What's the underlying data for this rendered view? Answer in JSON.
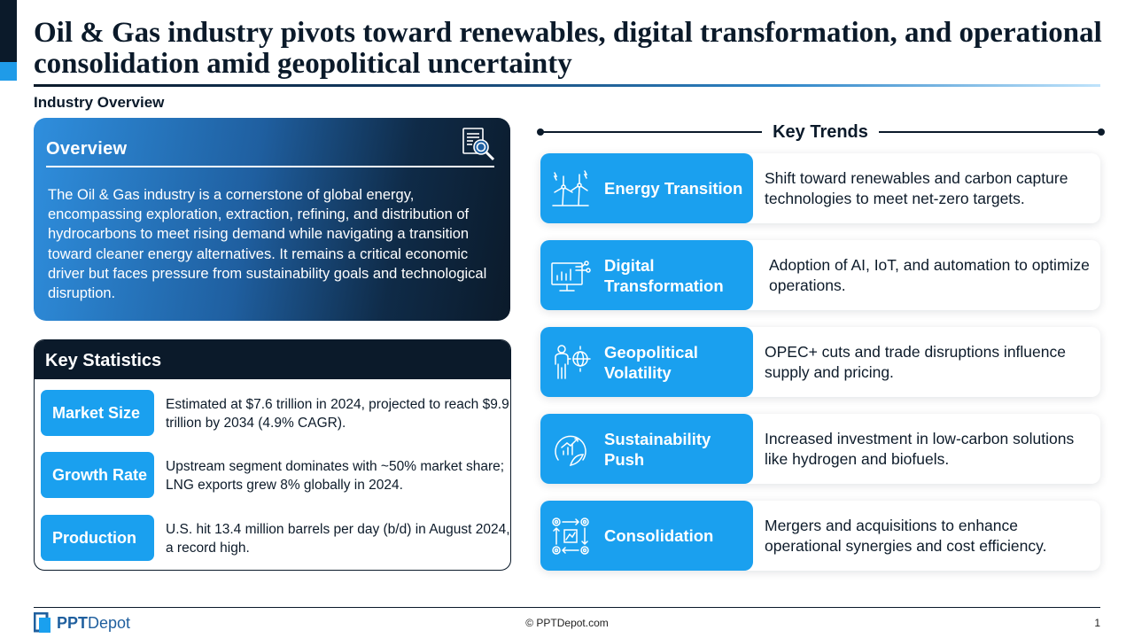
{
  "slide": {
    "title": "Oil & Gas industry pivots toward renewables, digital transformation, and operational consolidation amid geopolitical uncertainty",
    "section_label": "Industry Overview"
  },
  "overview": {
    "heading": "Overview",
    "icon": "document-search-icon",
    "text": "The Oil & Gas industry is a cornerstone of global energy, encompassing exploration, extraction, refining, and distribution of hydrocarbons to meet rising demand while navigating a transition toward cleaner energy alternatives. It remains a critical economic driver but faces pressure from sustainability goals and technological disruption."
  },
  "key_statistics": {
    "heading": "Key Statistics",
    "items": [
      {
        "label": "Market Size",
        "text": "Estimated at $7.6 trillion in 2024, projected to reach $9.9 trillion by 2034 (4.9% CAGR)."
      },
      {
        "label": "Growth Rate",
        "text": "Upstream segment dominates with ~50% market share; LNG exports grew 8% globally in 2024."
      },
      {
        "label": "Production",
        "text": "U.S. hit 13.4 million barrels per day (b/d) in August 2024, a record high."
      }
    ]
  },
  "key_trends": {
    "heading": "Key Trends",
    "items": [
      {
        "label": "Energy Transition",
        "icon": "wind-turbine-icon",
        "text": "Shift toward renewables and carbon capture technologies to meet net-zero targets."
      },
      {
        "label": "Digital Transformation",
        "icon": "digital-monitor-icon",
        "text": "Adoption of AI, IoT, and automation to optimize operations."
      },
      {
        "label": "Geopolitical Volatility",
        "icon": "person-globe-icon",
        "text": "OPEC+ cuts and trade disruptions influence supply and pricing."
      },
      {
        "label": "Sustainability Push",
        "icon": "growth-leaf-icon",
        "text": "Increased investment in low-carbon solutions like hydrogen and biofuels."
      },
      {
        "label": "Consolidation",
        "icon": "gears-process-icon",
        "text": "Mergers and acquisitions to enhance operational synergies and cost efficiency."
      }
    ]
  },
  "footer": {
    "logo_bold": "PPT",
    "logo_light": "Depot",
    "copyright": "© PPTDepot.com",
    "page_number": "1"
  },
  "colors": {
    "navy": "#0b1a2a",
    "accent_blue": "#1aa0ef",
    "brand_blue": "#1f5f9e"
  }
}
